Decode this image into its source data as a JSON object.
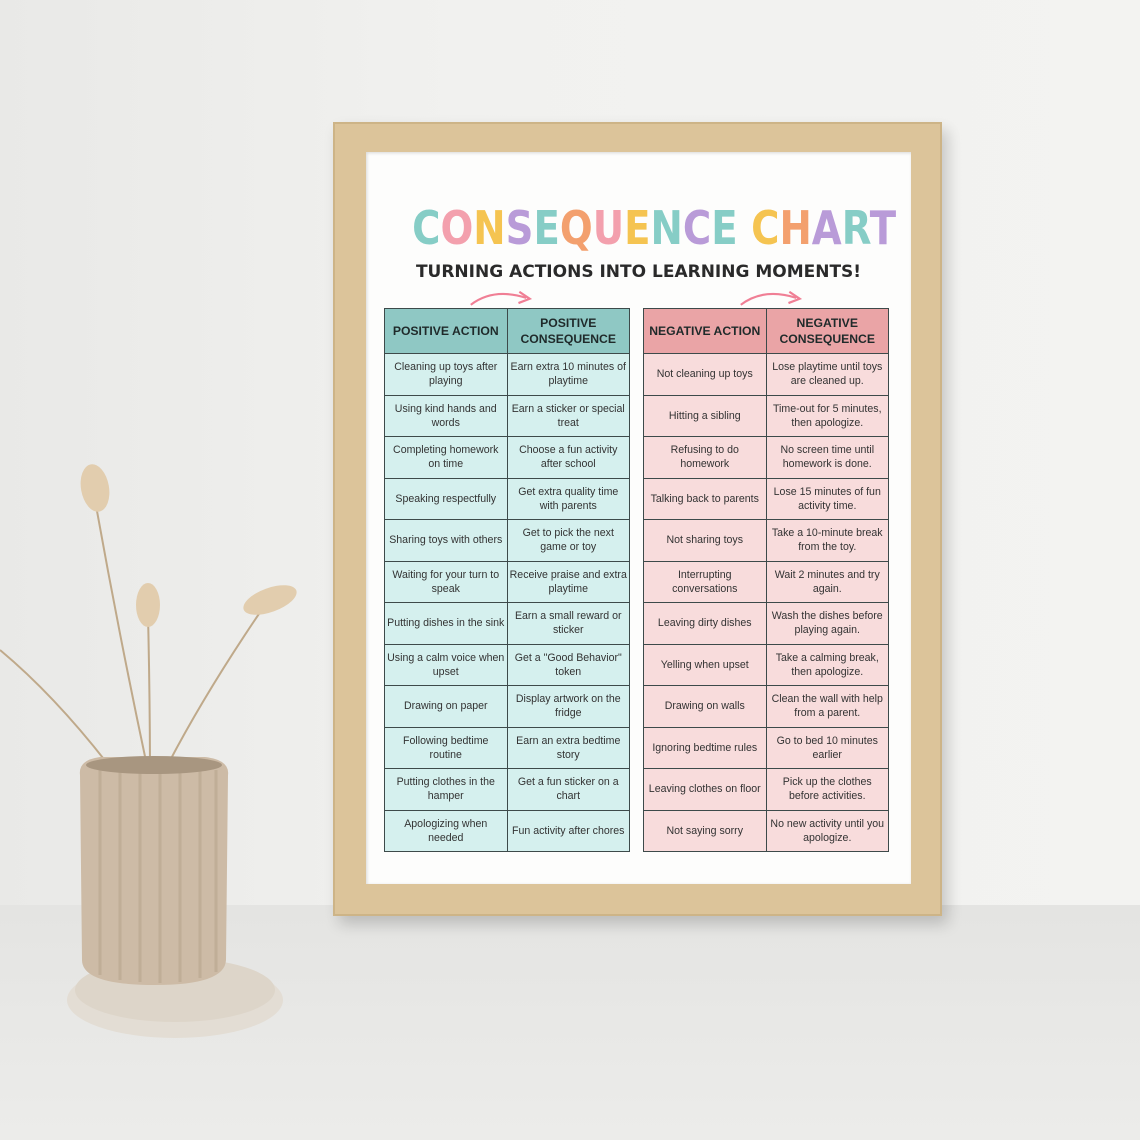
{
  "poster": {
    "title": "CONSEQUENCE CHART",
    "title_colors": [
      "#86cdc6",
      "#f3a0ad",
      "#f5c451",
      "#b99bd8",
      "#86cdc6",
      "#f3a06e",
      "#f3a0ad",
      "#f5c451",
      "#86cdc6",
      "#b99bd8",
      "#86cdc6",
      "#f3a0ad",
      "#f5c451",
      "#f3a06e",
      "#b99bd8",
      "#86cdc6",
      "#b99bd8"
    ],
    "subtitle": "TURNING ACTIONS INTO LEARNING MOMENTS!",
    "arrow_color": "#f07f95"
  },
  "positive_table": {
    "headers": [
      "POSITIVE ACTION",
      "POSITIVE CONSEQUENCE"
    ],
    "header_color": "#8fc8c4",
    "cell_color": "#d5f0ee",
    "rows": [
      [
        "Cleaning up toys after playing",
        "Earn extra 10 minutes of playtime"
      ],
      [
        "Using kind hands and words",
        "Earn a sticker or special treat"
      ],
      [
        "Completing homework on time",
        "Choose a fun activity after school"
      ],
      [
        "Speaking respectfully",
        "Get extra quality time with parents"
      ],
      [
        "Sharing toys with others",
        "Get to pick the next game or toy"
      ],
      [
        "Waiting for your turn to speak",
        "Receive praise and extra playtime"
      ],
      [
        "Putting dishes in the sink",
        "Earn a small reward or sticker"
      ],
      [
        "Using a calm voice when upset",
        "Get a \"Good Behavior\" token"
      ],
      [
        "Drawing on paper",
        "Display artwork on the fridge"
      ],
      [
        "Following bedtime routine",
        "Earn an extra bedtime story"
      ],
      [
        "Putting clothes in the hamper",
        "Get a fun sticker on a chart"
      ],
      [
        "Apologizing when needed",
        "Fun activity after chores"
      ]
    ]
  },
  "negative_table": {
    "headers": [
      "NEGATIVE ACTION",
      "NEGATIVE CONSEQUENCE"
    ],
    "header_color": "#eaa4a6",
    "cell_color": "#f8dcdc",
    "rows": [
      [
        "Not cleaning up toys",
        "Lose playtime until toys are cleaned up."
      ],
      [
        "Hitting a sibling",
        "Time-out for 5 minutes, then apologize."
      ],
      [
        "Refusing to do homework",
        "No screen time until homework is done."
      ],
      [
        "Talking back to parents",
        "Lose 15 minutes of fun activity time."
      ],
      [
        "Not sharing toys",
        "Take a 10-minute break from the toy."
      ],
      [
        "Interrupting conversations",
        "Wait 2 minutes and try again."
      ],
      [
        "Leaving dirty dishes",
        "Wash the dishes before playing again."
      ],
      [
        "Yelling when upset",
        "Take a calming break, then apologize."
      ],
      [
        "Drawing on walls",
        "Clean the wall with help from a parent."
      ],
      [
        "Ignoring bedtime rules",
        "Go to bed 10 minutes earlier"
      ],
      [
        "Leaving clothes on floor",
        "Pick up the clothes before  activities."
      ],
      [
        "Not saying sorry",
        "No new activity until you apologize."
      ]
    ]
  }
}
